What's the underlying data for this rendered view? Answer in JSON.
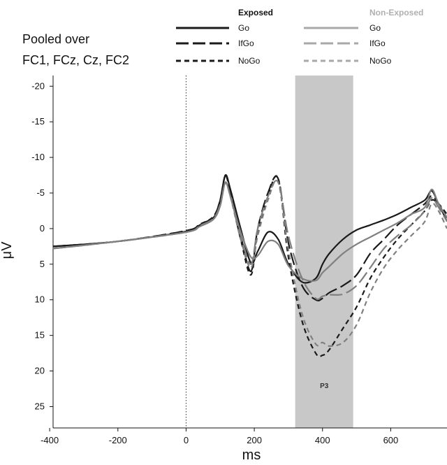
{
  "chart_data": {
    "type": "line",
    "title": "",
    "annotation_lines": [
      "Pooled over",
      "FC1, FCz, Cz, FC2"
    ],
    "xlabel": "ms",
    "ylabel": "μV",
    "xlim": [
      -390,
      765
    ],
    "ylim": [
      -21.5,
      28
    ],
    "y_inverted": true,
    "x_ticks": [
      -400,
      -200,
      0,
      200,
      400,
      600
    ],
    "x_tick_labels": [
      "-400",
      "-200",
      "0",
      "200",
      "400",
      "600"
    ],
    "y_ticks": [
      -20,
      -15,
      -10,
      -5,
      0,
      5,
      10,
      15,
      20,
      25
    ],
    "y_tick_labels": [
      "-20",
      "-15",
      "-10",
      "-5",
      "0",
      "5",
      "10",
      "15",
      "20",
      "25"
    ],
    "grid": false,
    "zero_marker": {
      "x": 0,
      "style": "dotted"
    },
    "shaded_window": {
      "x": [
        320,
        490
      ],
      "label": "P3",
      "color": "#c8c8c8"
    },
    "legend": {
      "position": "top-right",
      "groups": [
        {
          "heading": "Exposed",
          "heading_color": "#111111",
          "entries": [
            "Go",
            "IfGo",
            "NoGo"
          ]
        },
        {
          "heading": "Non-Exposed",
          "heading_color": "#b0b0b0",
          "entries": [
            "Go",
            "IfGo",
            "NoGo"
          ]
        }
      ]
    },
    "x": [
      -390,
      -200,
      0,
      40,
      80,
      100,
      115,
      130,
      160,
      190,
      210,
      240,
      270,
      300,
      340,
      380,
      400,
      420,
      460,
      500,
      540,
      580,
      620,
      660,
      700,
      720,
      740,
      765
    ],
    "series": [
      {
        "name": "Go",
        "group": "Exposed",
        "color": "#1a1a1a",
        "dash": "solid",
        "values": [
          2.5,
          1.8,
          0.4,
          -0.5,
          -1.5,
          -4,
          -7.5,
          -5.5,
          0,
          4.8,
          3.2,
          0.5,
          1.5,
          5,
          7.5,
          7,
          5,
          3.5,
          1.5,
          0.2,
          -0.5,
          -1.2,
          -2,
          -3,
          -4,
          -5.3,
          -3.5,
          -1
        ]
      },
      {
        "name": "IfGo",
        "group": "Exposed",
        "color": "#1a1a1a",
        "dash": "long",
        "values": [
          2.5,
          1.8,
          0.3,
          -0.6,
          -1.6,
          -4,
          -7.4,
          -5.2,
          1,
          6,
          0,
          -5,
          -7,
          2,
          8,
          10,
          9.8,
          9,
          8,
          6.5,
          3.5,
          1.5,
          -0.5,
          -2,
          -3.5,
          -4.6,
          -3.5,
          -1.5
        ]
      },
      {
        "name": "NoGo",
        "group": "Exposed",
        "color": "#1a1a1a",
        "dash": "short",
        "values": [
          2.5,
          1.8,
          0.3,
          -0.6,
          -1.7,
          -4,
          -7.4,
          -5,
          1.5,
          6.5,
          0.5,
          -4.5,
          -7,
          4,
          13,
          17.5,
          17.8,
          17,
          14,
          11,
          7,
          4,
          1.5,
          -0.5,
          -2.5,
          -4,
          -3.5,
          -2
        ]
      },
      {
        "name": "Go",
        "group": "Non-Exposed",
        "color": "#808080",
        "dash": "solid",
        "values": [
          2.8,
          1.8,
          0.5,
          -0.3,
          -1.3,
          -3.2,
          -6.5,
          -4.5,
          0.5,
          4,
          3.8,
          1.8,
          2.2,
          5.2,
          7,
          7.3,
          6.2,
          5.3,
          3.5,
          2.2,
          1.2,
          0.2,
          -0.8,
          -2,
          -3,
          -5.5,
          -3.5,
          -1.5
        ]
      },
      {
        "name": "IfGo",
        "group": "Non-Exposed",
        "color": "#808080",
        "dash": "long",
        "values": [
          2.8,
          1.8,
          0.5,
          -0.4,
          -1.4,
          -3.4,
          -6.4,
          -4.5,
          1,
          5,
          0,
          -4.5,
          -6.5,
          1,
          7,
          9.8,
          9.5,
          9.3,
          9.2,
          8,
          5.5,
          2.8,
          1,
          -0.5,
          -2.5,
          -4.3,
          -3,
          -1
        ]
      },
      {
        "name": "NoGo",
        "group": "Non-Exposed",
        "color": "#808080",
        "dash": "short",
        "values": [
          2.8,
          1.8,
          0.5,
          -0.4,
          -1.4,
          -3.4,
          -6.4,
          -4.5,
          1.5,
          5.5,
          1,
          -4,
          -6.5,
          3,
          12,
          16.2,
          16,
          16.5,
          16,
          13.5,
          9,
          5.5,
          3,
          1,
          -1,
          -3.5,
          -2.5,
          0
        ]
      }
    ]
  }
}
